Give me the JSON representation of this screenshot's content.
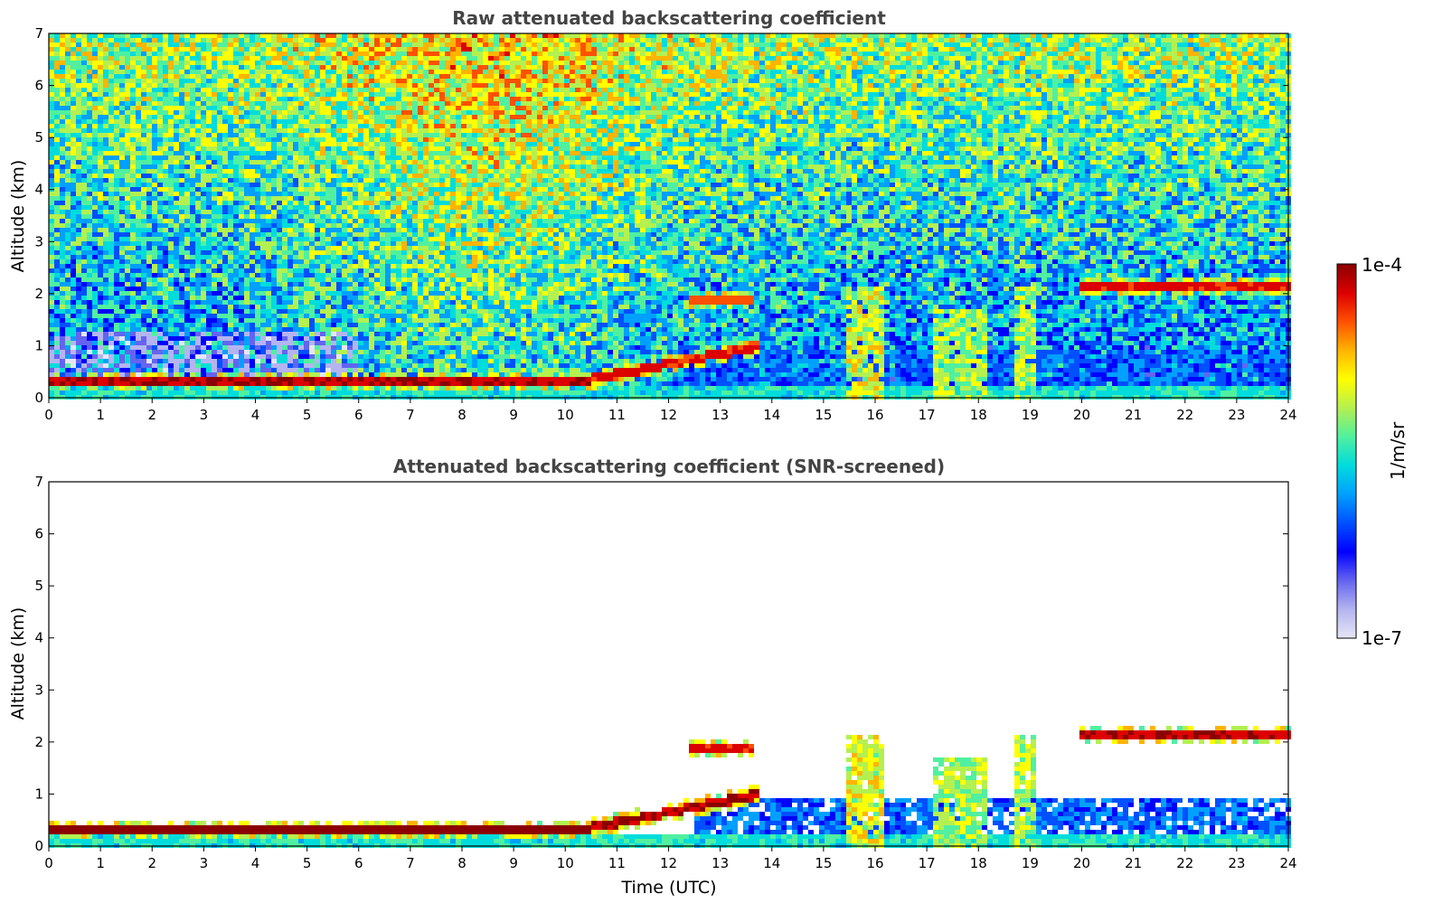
{
  "chart_data": [
    {
      "type": "heatmap",
      "title": "Raw attenuated backscattering coefficient",
      "xlabel": "",
      "ylabel": "Altitude (km)",
      "xlim": [
        0,
        24
      ],
      "ylim": [
        0,
        7
      ],
      "xticks": [
        "0",
        "1",
        "2",
        "3",
        "4",
        "5",
        "6",
        "7",
        "8",
        "9",
        "10",
        "11",
        "12",
        "13",
        "14",
        "15",
        "16",
        "17",
        "18",
        "19",
        "20",
        "21",
        "22",
        "23",
        "24"
      ],
      "yticks": [
        "0",
        "1",
        "2",
        "3",
        "4",
        "5",
        "6",
        "7"
      ],
      "noise": "high",
      "layers": [
        {
          "name": "boundary-layer",
          "x": [
            0,
            10.5
          ],
          "alt": 0.3,
          "level": 0.95
        },
        {
          "name": "rising-layer",
          "x": [
            10.5,
            13.8
          ],
          "alt": [
            0.35,
            1.0
          ],
          "level": 0.9
        },
        {
          "name": "cloud-2km-a",
          "x": [
            12.4,
            13.7
          ],
          "alt": 1.9,
          "level": 0.85
        },
        {
          "name": "cloud-2km-b",
          "x": [
            20.0,
            24.0
          ],
          "alt": 2.1,
          "level": 0.9
        },
        {
          "name": "convective-1",
          "x": [
            15.4,
            16.2
          ],
          "alt": [
            0,
            2.1
          ],
          "level": 0.75
        },
        {
          "name": "convective-2",
          "x": [
            17.1,
            18.2
          ],
          "alt": [
            0,
            1.7
          ],
          "level": 0.7
        },
        {
          "name": "convective-3",
          "x": [
            18.7,
            19.1
          ],
          "alt": [
            0,
            2.1
          ],
          "level": 0.7
        }
      ]
    },
    {
      "type": "heatmap",
      "title": "Attenuated backscattering coefficient (SNR-screened)",
      "xlabel": "Time (UTC)",
      "ylabel": "Altitude (km)",
      "xlim": [
        0,
        24
      ],
      "ylim": [
        0,
        7
      ],
      "xticks": [
        "0",
        "1",
        "2",
        "3",
        "4",
        "5",
        "6",
        "7",
        "8",
        "9",
        "10",
        "11",
        "12",
        "13",
        "14",
        "15",
        "16",
        "17",
        "18",
        "19",
        "20",
        "21",
        "22",
        "23",
        "24"
      ],
      "yticks": [
        "0",
        "1",
        "2",
        "3",
        "4",
        "5",
        "6",
        "7"
      ],
      "noise": "screened",
      "layers": [
        {
          "name": "boundary-layer",
          "x": [
            0,
            10.5
          ],
          "alt": 0.3,
          "level": 0.98
        },
        {
          "name": "rising-layer",
          "x": [
            10.5,
            13.8
          ],
          "alt": [
            0.35,
            1.0
          ],
          "level": 0.95
        },
        {
          "name": "cloud-2km-a",
          "x": [
            12.4,
            13.7
          ],
          "alt": 1.9,
          "level": 0.9
        },
        {
          "name": "cloud-2km-b",
          "x": [
            20.0,
            24.0
          ],
          "alt": 2.1,
          "level": 0.95
        },
        {
          "name": "convective-1",
          "x": [
            15.4,
            16.2
          ],
          "alt": [
            0,
            2.1
          ],
          "level": 0.75
        },
        {
          "name": "convective-2",
          "x": [
            17.1,
            18.2
          ],
          "alt": [
            0,
            1.7
          ],
          "level": 0.7
        },
        {
          "name": "convective-3",
          "x": [
            18.7,
            19.1
          ],
          "alt": [
            0,
            2.1
          ],
          "level": 0.7
        }
      ]
    }
  ],
  "colorbar": {
    "max_label": "1e-4",
    "min_label": "1e-7",
    "unit": "1/m/sr",
    "colors": [
      "#e6e6f5",
      "#b4b4f0",
      "#6464f0",
      "#0000ff",
      "#0050ff",
      "#00a0ff",
      "#00dcdc",
      "#50f0a0",
      "#b4f050",
      "#ffff00",
      "#ffb400",
      "#ff5000",
      "#dc0000",
      "#8b0000"
    ]
  }
}
